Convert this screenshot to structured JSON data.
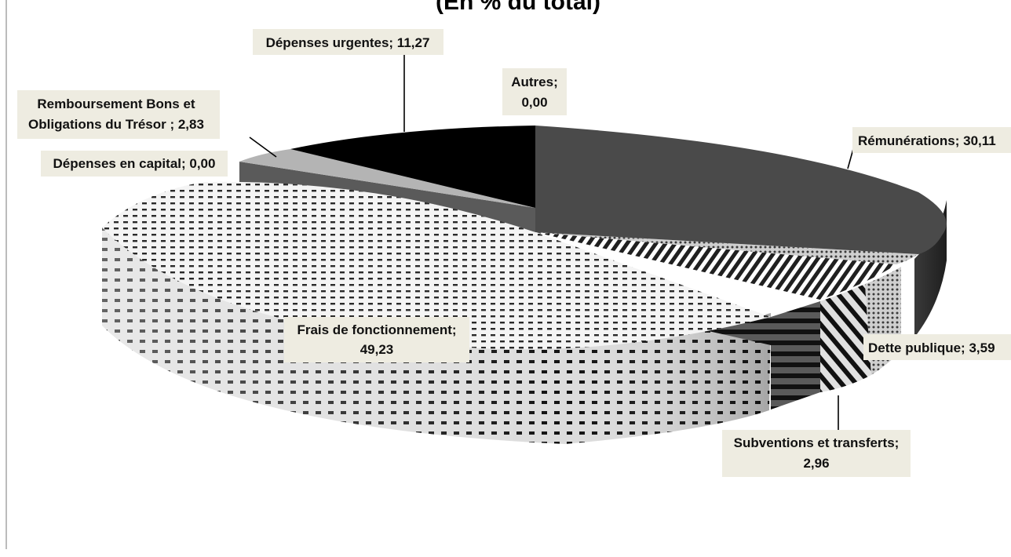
{
  "chart_data": {
    "type": "pie",
    "title": "(En % du total)",
    "slices": [
      {
        "name": "Rémunérations",
        "value": 30.11,
        "label": "Rémunérations; 30,11",
        "color": "#4a4a4a",
        "pattern": "solid-dark",
        "exploded": false
      },
      {
        "name": "Dette publique",
        "value": 3.59,
        "label": "Dette publique; 3,59",
        "color": "#9a9a9a",
        "pattern": "diamond",
        "exploded": true
      },
      {
        "name": "Subventions et transferts",
        "value": 2.96,
        "label": "Subventions et transferts; 2,96",
        "color": "#7a7a7a",
        "pattern": "diagonal",
        "exploded": true
      },
      {
        "name": "Frais de fonctionnement",
        "value": 49.23,
        "label": "Frais de fonctionnement; 49,23",
        "color": "#e0e0e0",
        "pattern": "dashes",
        "exploded": true
      },
      {
        "name": "Dépenses en capital",
        "value": 0.0,
        "label": "Dépenses en capital; 0,00",
        "color": "#555555",
        "pattern": "solid",
        "exploded": false
      },
      {
        "name": "Remboursement Bons et Obligations du Trésor",
        "value": 2.83,
        "label": "Remboursement Bons et Obligations du Trésor ; 2,83",
        "color": "#b4b4b4",
        "pattern": "solid-light",
        "exploded": false
      },
      {
        "name": "Dépenses urgentes",
        "value": 11.27,
        "label": "Dépenses urgentes; 11,27",
        "color": "#000000",
        "pattern": "solid-black",
        "exploded": false
      },
      {
        "name": "Autres",
        "value": 0.0,
        "label": "Autres; 0,00",
        "color": "#000000",
        "pattern": "solid-black",
        "exploded": false
      }
    ],
    "labels": {
      "remunerations": [
        "Rémunérations; 30,11"
      ],
      "dette": [
        "Dette publique; 3,59"
      ],
      "subventions": [
        "Subventions et transferts;",
        "2,96"
      ],
      "frais": [
        "Frais de fonctionnement;",
        "49,23"
      ],
      "capital": [
        "Dépenses en capital; 0,00"
      ],
      "remboursement": [
        "Remboursement Bons et",
        "Obligations du Trésor ; 2,83"
      ],
      "urgentes": [
        "Dépenses urgentes; 11,27"
      ],
      "autres": [
        "Autres;",
        "0,00"
      ]
    }
  }
}
